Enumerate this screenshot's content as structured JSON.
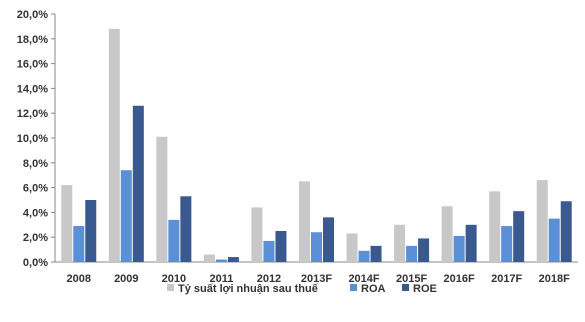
{
  "chart_data": {
    "type": "bar",
    "categories": [
      "2008",
      "2009",
      "2010",
      "2011",
      "2012",
      "2013F",
      "2014F",
      "2015F",
      "2016F",
      "2017F",
      "2018F"
    ],
    "series": [
      {
        "name": "Tỷ suất lợi nhuận sau thuế",
        "color": "#c8c8c8",
        "values": [
          6.2,
          18.8,
          10.1,
          0.6,
          4.4,
          6.5,
          2.3,
          3.0,
          4.5,
          5.7,
          6.6
        ]
      },
      {
        "name": "ROA",
        "color": "#5b8fd6",
        "values": [
          2.9,
          7.4,
          3.4,
          0.2,
          1.7,
          2.4,
          0.9,
          1.3,
          2.1,
          2.9,
          3.5
        ]
      },
      {
        "name": "ROE",
        "color": "#3a5a8f",
        "values": [
          5.0,
          12.6,
          5.3,
          0.4,
          2.5,
          3.6,
          1.3,
          1.9,
          3.0,
          4.1,
          4.9
        ]
      }
    ],
    "y_ticks": [
      "0,0%",
      "2,0%",
      "4,0%",
      "6,0%",
      "8,0%",
      "10,0%",
      "12,0%",
      "14,0%",
      "16,0%",
      "18,0%",
      "20,0%"
    ],
    "ylim": [
      0,
      20
    ],
    "legend_position": "bottom",
    "grid": false
  }
}
